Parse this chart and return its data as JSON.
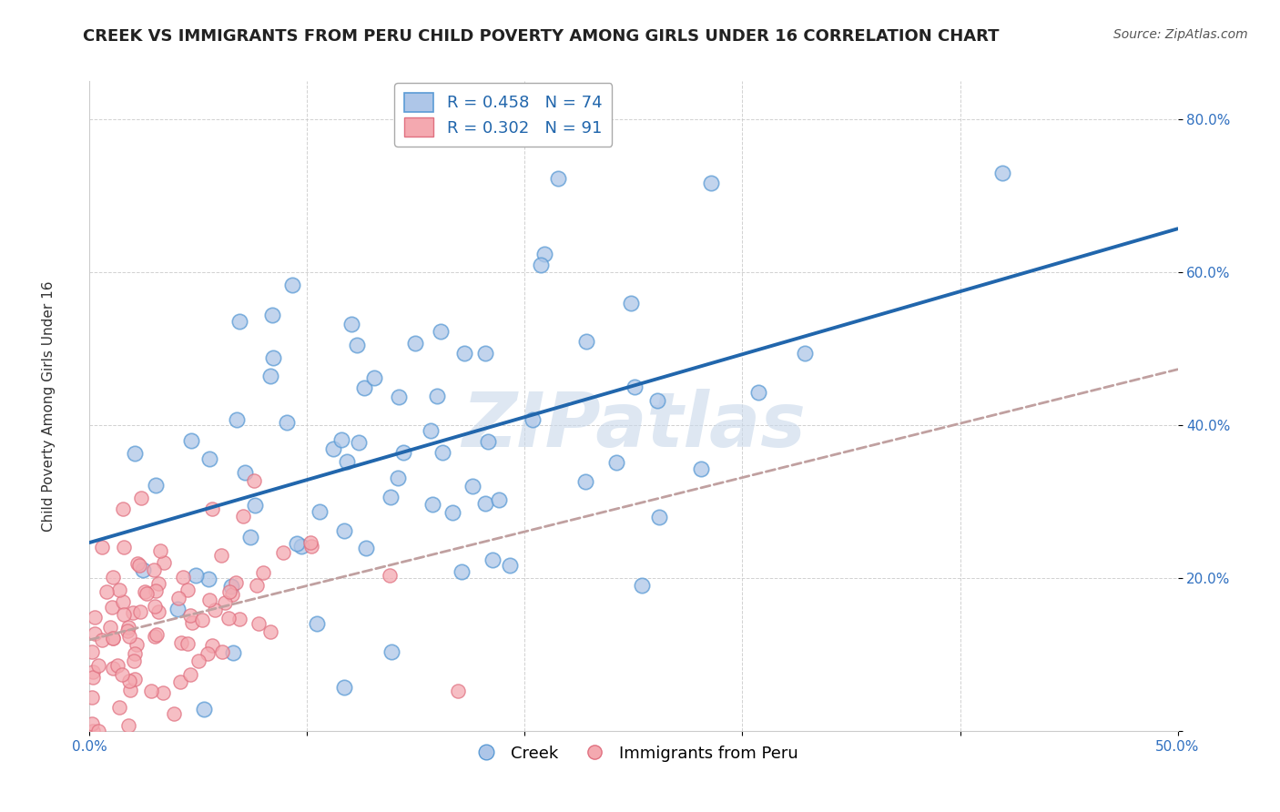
{
  "title": "CREEK VS IMMIGRANTS FROM PERU CHILD POVERTY AMONG GIRLS UNDER 16 CORRELATION CHART",
  "source": "Source: ZipAtlas.com",
  "ylabel": "Child Poverty Among Girls Under 16",
  "xlim": [
    0.0,
    0.5
  ],
  "ylim": [
    0.0,
    0.85
  ],
  "yticks": [
    0.0,
    0.2,
    0.4,
    0.6,
    0.8
  ],
  "ytick_labels": [
    "",
    "20.0%",
    "40.0%",
    "60.0%",
    "80.0%"
  ],
  "xtick_labels_show": [
    "0.0%",
    "50.0%"
  ],
  "creek_color": "#aec6e8",
  "peru_color": "#f4a9b0",
  "creek_edge": "#5b9bd5",
  "peru_edge": "#e07080",
  "creek_R": 0.458,
  "creek_N": 74,
  "peru_R": 0.302,
  "peru_N": 91,
  "creek_line_color": "#2166ac",
  "peru_line_color": "#c0a0a0",
  "watermark": "ZIPatlas",
  "watermark_color": "#c8d8ea",
  "background_color": "#ffffff",
  "grid_color": "#cccccc",
  "creek_seed": 42,
  "peru_seed": 7,
  "title_fontsize": 13,
  "axis_label_fontsize": 11,
  "tick_fontsize": 11,
  "legend_fontsize": 13,
  "source_fontsize": 10,
  "ytick_color": "#3070c0",
  "xtick_color": "#3070c0"
}
